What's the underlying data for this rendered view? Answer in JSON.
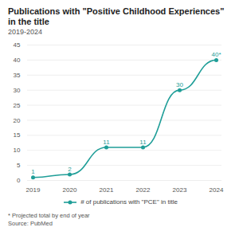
{
  "chart_data": {
    "type": "line",
    "title": "Publications with \"Positive Childhood Experiences\" in the title",
    "subtitle": "2019-2024",
    "categories": [
      "2019",
      "2020",
      "2021",
      "2022",
      "2023",
      "2024"
    ],
    "series": [
      {
        "name": "# of publications with \"PCE\" in title",
        "color": "#1f9e98",
        "values": [
          1,
          2,
          11,
          11,
          30,
          40
        ],
        "value_labels": [
          "1",
          "2",
          "11",
          "11",
          "30",
          "40*"
        ],
        "marker": "circle",
        "line_style": "curved"
      }
    ],
    "ylim": [
      0,
      45
    ],
    "yticks": [
      0,
      5,
      10,
      15,
      20,
      25,
      30,
      35,
      40,
      45
    ],
    "grid": true,
    "data_labels": true,
    "legend": "bottom",
    "footnote": "* Projected total by end of year",
    "source": "Source: PubMed"
  }
}
